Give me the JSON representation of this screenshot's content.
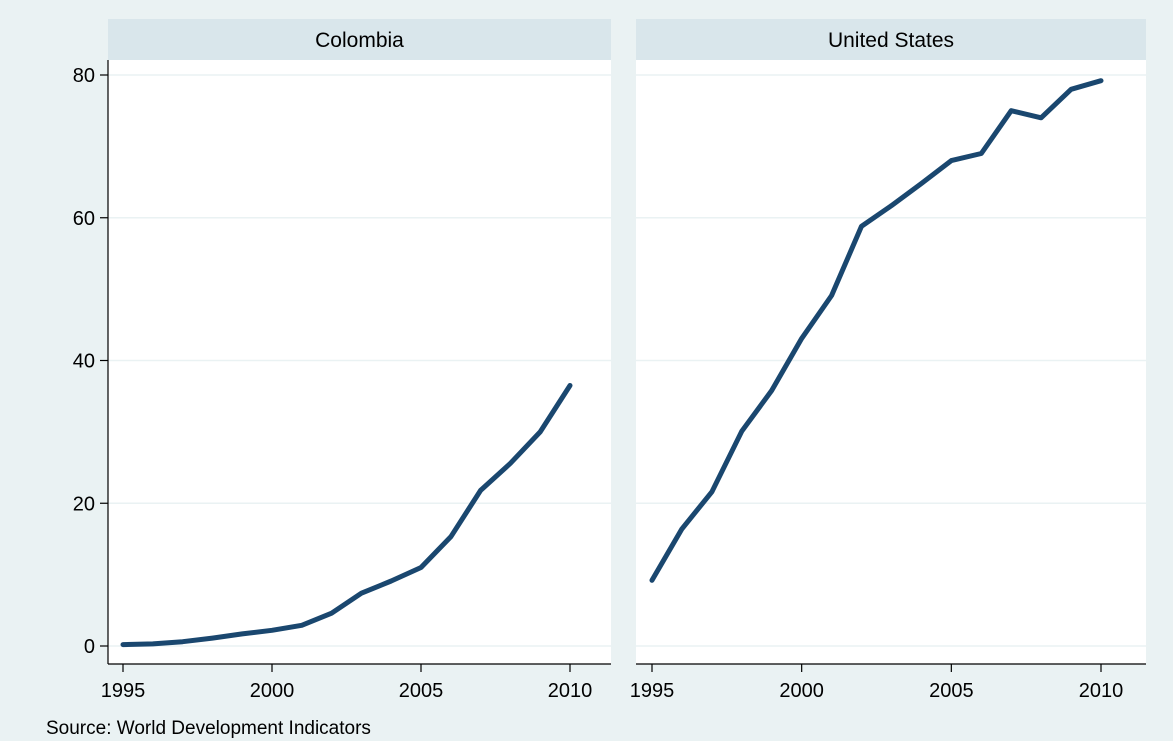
{
  "note": "Source: World Development Indicators",
  "colors": {
    "background": "#eaf2f3",
    "panel": "#ffffff",
    "strip": "#d9e6eb",
    "grid": "#eaf2f3",
    "line": "#1a476f",
    "axis": "#000000"
  },
  "chart_data": [
    {
      "type": "line",
      "title": "Colombia",
      "xlabel": "",
      "ylabel": "",
      "xlim": [
        1995,
        2010
      ],
      "ylim": [
        0,
        80
      ],
      "x_ticks": [
        1995,
        2000,
        2005,
        2010
      ],
      "y_ticks": [
        0,
        20,
        40,
        60,
        80
      ],
      "grid": true,
      "x": [
        1995,
        1996,
        1997,
        1998,
        1999,
        2000,
        2001,
        2002,
        2003,
        2004,
        2005,
        2006,
        2007,
        2008,
        2009,
        2010
      ],
      "y": [
        0.2,
        0.3,
        0.6,
        1.1,
        1.7,
        2.2,
        2.9,
        4.6,
        7.4,
        9.1,
        11.0,
        15.3,
        21.8,
        25.6,
        30.0,
        36.5
      ]
    },
    {
      "type": "line",
      "title": "United States",
      "xlabel": "",
      "ylabel": "",
      "xlim": [
        1995,
        2010
      ],
      "ylim": [
        0,
        80
      ],
      "x_ticks": [
        1995,
        2000,
        2005,
        2010
      ],
      "y_ticks": [
        0,
        20,
        40,
        60,
        80
      ],
      "grid": true,
      "x": [
        1995,
        1996,
        1997,
        1998,
        1999,
        2000,
        2001,
        2002,
        2003,
        2004,
        2005,
        2006,
        2007,
        2008,
        2009,
        2010
      ],
      "y": [
        9.2,
        16.4,
        21.6,
        30.1,
        35.8,
        43.1,
        49.1,
        58.8,
        61.7,
        64.8,
        68.0,
        69.0,
        75.0,
        74.0,
        78.0,
        79.2
      ]
    }
  ]
}
